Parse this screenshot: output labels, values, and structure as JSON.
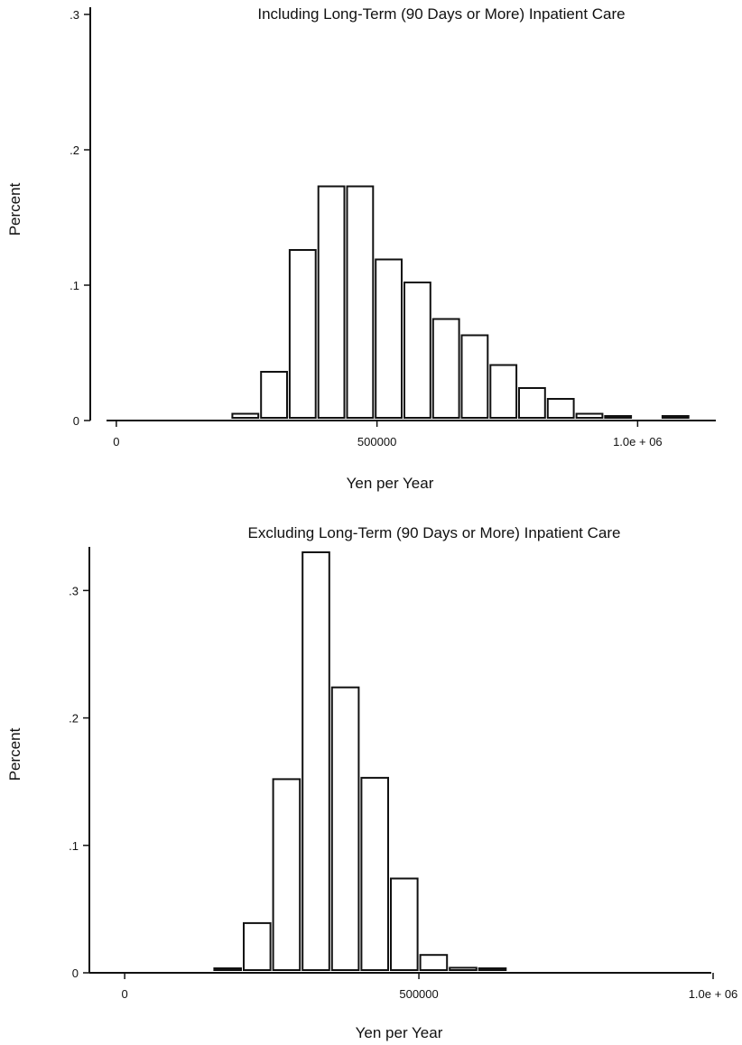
{
  "chart_data": [
    {
      "type": "bar",
      "title": "Including Long-Term (90 Days or More) Inpatient Care",
      "xlabel": "Yen per Year",
      "ylabel": "Percent",
      "xlim": [
        -50000,
        1150000
      ],
      "ylim": [
        0,
        0.3
      ],
      "yticks": [
        0,
        0.1,
        0.2,
        0.3
      ],
      "ytick_labels": [
        "0",
        ".1",
        ".2",
        ".3"
      ],
      "xticks": [
        0,
        500000,
        1000000
      ],
      "xtick_labels": [
        "0",
        "500000",
        "1.0e + 06"
      ],
      "bin_width": 55000,
      "bin_starts": [
        220000,
        275000,
        330000,
        385000,
        440000,
        495000,
        550000,
        605000,
        660000,
        715000,
        770000,
        825000,
        880000,
        935000,
        1045000
      ],
      "values": [
        0.005,
        0.036,
        0.126,
        0.173,
        0.173,
        0.119,
        0.102,
        0.075,
        0.063,
        0.041,
        0.024,
        0.016,
        0.005,
        0.002,
        0.002
      ],
      "grid": false
    },
    {
      "type": "bar",
      "title": "Excluding Long-Term (90 Days or More) Inpatient Care",
      "xlabel": "Yen per Year",
      "ylabel": "Percent",
      "xlim": [
        -60000,
        1000000
      ],
      "ylim": [
        0,
        0.33
      ],
      "yticks": [
        0,
        0.1,
        0.2,
        0.3
      ],
      "ytick_labels": [
        "0",
        ".1",
        ".2",
        ".3"
      ],
      "xticks": [
        0,
        500000,
        1000000
      ],
      "xtick_labels": [
        "0",
        "500000",
        "1.0e + 06"
      ],
      "bin_width": 50000,
      "bin_starts": [
        150000,
        200000,
        250000,
        300000,
        350000,
        400000,
        450000,
        500000,
        550000,
        600000
      ],
      "values": [
        0.002,
        0.039,
        0.152,
        0.33,
        0.224,
        0.153,
        0.074,
        0.014,
        0.004,
        0.003
      ],
      "grid": false
    }
  ]
}
